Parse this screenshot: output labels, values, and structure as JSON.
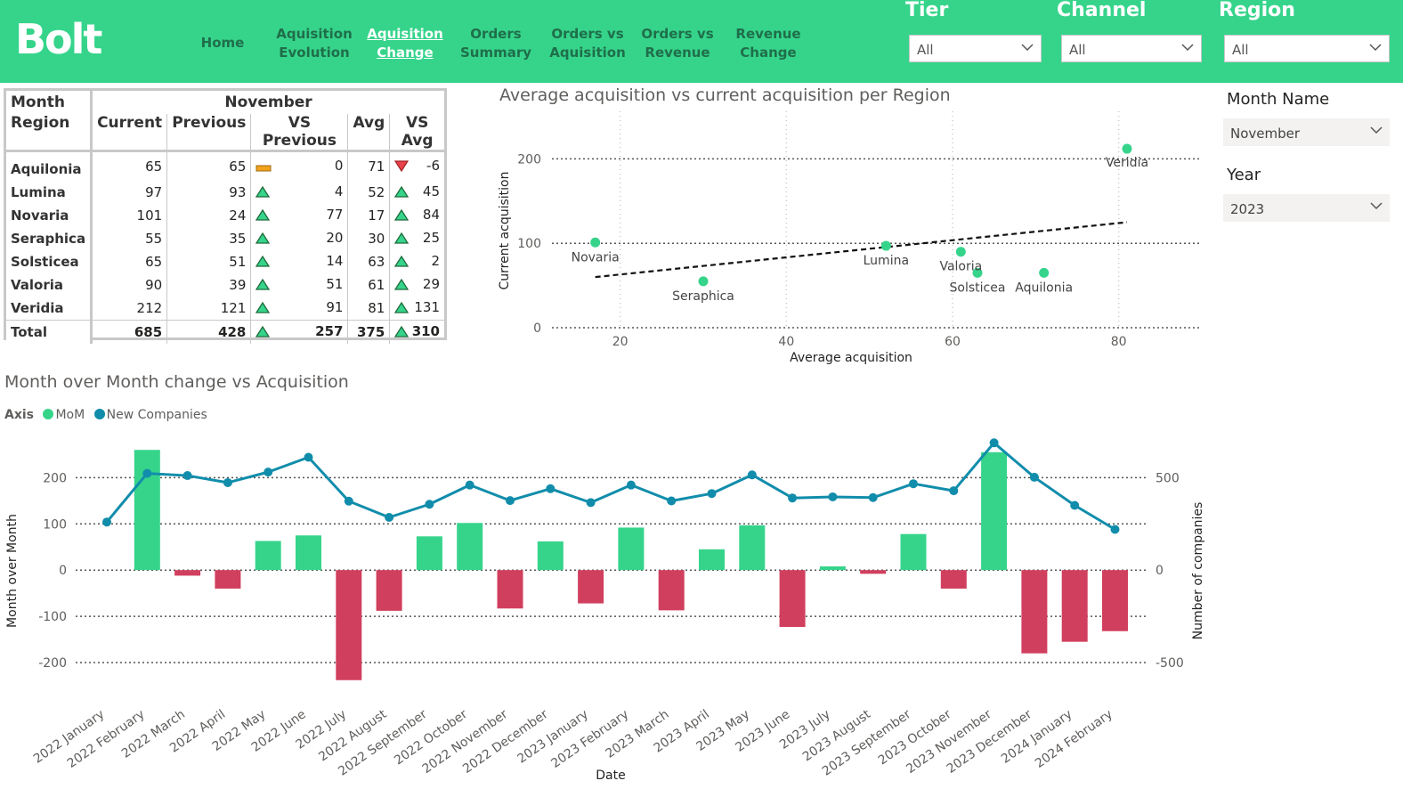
{
  "header": {
    "logo": "Bolt",
    "nav": [
      {
        "label": "Home"
      },
      {
        "label": "Aquisition Evolution"
      },
      {
        "label": "Aquisition Change"
      },
      {
        "label": "Orders Summary"
      },
      {
        "label": "Orders vs Aquisition"
      },
      {
        "label": "Orders vs Revenue"
      },
      {
        "label": "Revenue Change"
      }
    ],
    "filters": {
      "tier": {
        "label": "Tier",
        "value": "All"
      },
      "channel": {
        "label": "Channel",
        "value": "All"
      },
      "region": {
        "label": "Region",
        "value": "All"
      }
    },
    "colors": {
      "brand": "#36d48b",
      "positive": "#36d48b",
      "negative": "#d13f5e",
      "line": "#118dab"
    }
  },
  "table": {
    "month_header": "Month",
    "month_value": "November",
    "region_header": "Region",
    "columns": [
      "Current",
      "Previous",
      "VS Previous",
      "Avg",
      "VS Avg"
    ],
    "rows": [
      {
        "region": "Aquilonia",
        "current": "65",
        "previous": "65",
        "vs_previous": "0",
        "avg": "71",
        "vs_avg": "-6",
        "prev_ind": "neutral",
        "avg_ind": "down"
      },
      {
        "region": "Lumina",
        "current": "97",
        "previous": "93",
        "vs_previous": "4",
        "avg": "52",
        "vs_avg": "45",
        "prev_ind": "up",
        "avg_ind": "up"
      },
      {
        "region": "Novaria",
        "current": "101",
        "previous": "24",
        "vs_previous": "77",
        "avg": "17",
        "vs_avg": "84",
        "prev_ind": "up",
        "avg_ind": "up"
      },
      {
        "region": "Seraphica",
        "current": "55",
        "previous": "35",
        "vs_previous": "20",
        "avg": "30",
        "vs_avg": "25",
        "prev_ind": "up",
        "avg_ind": "up"
      },
      {
        "region": "Solsticea",
        "current": "65",
        "previous": "51",
        "vs_previous": "14",
        "avg": "63",
        "vs_avg": "2",
        "prev_ind": "up",
        "avg_ind": "up"
      },
      {
        "region": "Valoria",
        "current": "90",
        "previous": "39",
        "vs_previous": "51",
        "avg": "61",
        "vs_avg": "29",
        "prev_ind": "up",
        "avg_ind": "up"
      },
      {
        "region": "Veridia",
        "current": "212",
        "previous": "121",
        "vs_previous": "91",
        "avg": "81",
        "vs_avg": "131",
        "prev_ind": "up",
        "avg_ind": "up"
      }
    ],
    "total": {
      "region": "Total",
      "current": "685",
      "previous": "428",
      "vs_previous": "257",
      "avg": "375",
      "vs_avg": "310",
      "prev_ind": "up",
      "avg_ind": "up"
    }
  },
  "slicers": {
    "month": {
      "label": "Month Name",
      "value": "November"
    },
    "year": {
      "label": "Year",
      "value": "2023"
    }
  },
  "chart_data": [
    {
      "type": "scatter",
      "title": "Average acquisition vs current acquisition per Region",
      "xlabel": "Average acquisition",
      "ylabel": "Current acquisition",
      "xlim": [
        12,
        90
      ],
      "ylim": [
        0,
        230
      ],
      "xticks": [
        20,
        40,
        60,
        80
      ],
      "yticks": [
        0,
        100,
        200
      ],
      "grid": true,
      "trend_line": {
        "x": [
          17,
          81
        ],
        "y": [
          60,
          125
        ]
      },
      "points": [
        {
          "label": "Aquilonia",
          "x": 71,
          "y": 65
        },
        {
          "label": "Lumina",
          "x": 52,
          "y": 97
        },
        {
          "label": "Novaria",
          "x": 17,
          "y": 101
        },
        {
          "label": "Seraphica",
          "x": 30,
          "y": 55
        },
        {
          "label": "Solsticea",
          "x": 63,
          "y": 65
        },
        {
          "label": "Valoria",
          "x": 61,
          "y": 90
        },
        {
          "label": "Veridia",
          "x": 81,
          "y": 212
        }
      ]
    },
    {
      "type": "bar",
      "title": "Month over Month change vs Acquisition",
      "legend_title": "Axis",
      "xlabel": "Date",
      "ylabel": "Month over Month",
      "y2label": "Number of companies",
      "ylim": [
        -250,
        270
      ],
      "y2lim": [
        -625,
        675
      ],
      "yticks": [
        -200,
        -100,
        0,
        100,
        200
      ],
      "y2ticks": [
        -500,
        0,
        500
      ],
      "categories": [
        "2022 January",
        "2022 February",
        "2022 March",
        "2022 April",
        "2022 May",
        "2022 June",
        "2022 July",
        "2022 August",
        "2022 September",
        "2022 October",
        "2022 November",
        "2022 December",
        "2023 January",
        "2023 February",
        "2023 March",
        "2023 April",
        "2023 May",
        "2023 June",
        "2023 July",
        "2023 August",
        "2023 September",
        "2023 October",
        "2023 November",
        "2023 December",
        "2024 January",
        "2024 February"
      ],
      "series": [
        {
          "name": "MoM",
          "kind": "bar",
          "values": [
            0,
            260,
            -12,
            -40,
            63,
            75,
            -238,
            -88,
            73,
            102,
            -83,
            62,
            -72,
            92,
            -87,
            45,
            97,
            -123,
            8,
            -8,
            78,
            -40,
            255,
            -180,
            -155,
            -132
          ]
        },
        {
          "name": "New Companies",
          "kind": "line",
          "values": [
            260,
            523,
            511,
            473,
            530,
            610,
            373,
            285,
            356,
            460,
            376,
            440,
            365,
            460,
            374,
            414,
            515,
            390,
            396,
            392,
            467,
            429,
            688,
            502,
            350,
            220
          ]
        }
      ]
    }
  ]
}
